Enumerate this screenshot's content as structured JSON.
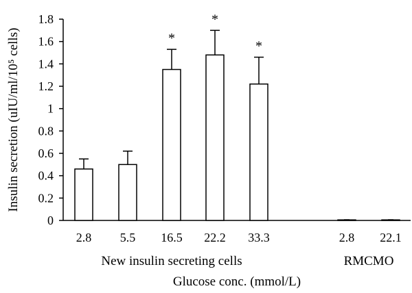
{
  "chart_data": {
    "type": "bar",
    "title": "",
    "xlabel": "Glucose conc. (mmol/L)",
    "ylabel": "Insulin secretion (uIU/ml/10⁵ cells)",
    "ylim": [
      0,
      1.8
    ],
    "yticks": [
      "0",
      "0.2",
      "0.4",
      "0.6",
      "0.8",
      "1",
      "1.2",
      "1.4",
      "1.6",
      "1.8"
    ],
    "grid": false,
    "bar_color": "#ffffff",
    "bars": [
      {
        "category": "2.8",
        "group": "New insulin secreting cells",
        "value": 0.46,
        "error": 0.09,
        "annotation": ""
      },
      {
        "category": "5.5",
        "group": "New insulin secreting cells",
        "value": 0.5,
        "error": 0.12,
        "annotation": ""
      },
      {
        "category": "16.5",
        "group": "New insulin secreting cells",
        "value": 1.35,
        "error": 0.18,
        "annotation": "*"
      },
      {
        "category": "22.2",
        "group": "New insulin secreting cells",
        "value": 1.48,
        "error": 0.22,
        "annotation": "*"
      },
      {
        "category": "33.3",
        "group": "New insulin secreting cells",
        "value": 1.22,
        "error": 0.24,
        "annotation": "*"
      },
      {
        "category": "2.8",
        "group": "RMCMO",
        "value": 0.005,
        "error": 0.0,
        "annotation": ""
      },
      {
        "category": "22.1",
        "group": "RMCMO",
        "value": 0.005,
        "error": 0.0,
        "annotation": ""
      }
    ],
    "groups": [
      "New insulin secreting cells",
      "RMCMO"
    ]
  }
}
